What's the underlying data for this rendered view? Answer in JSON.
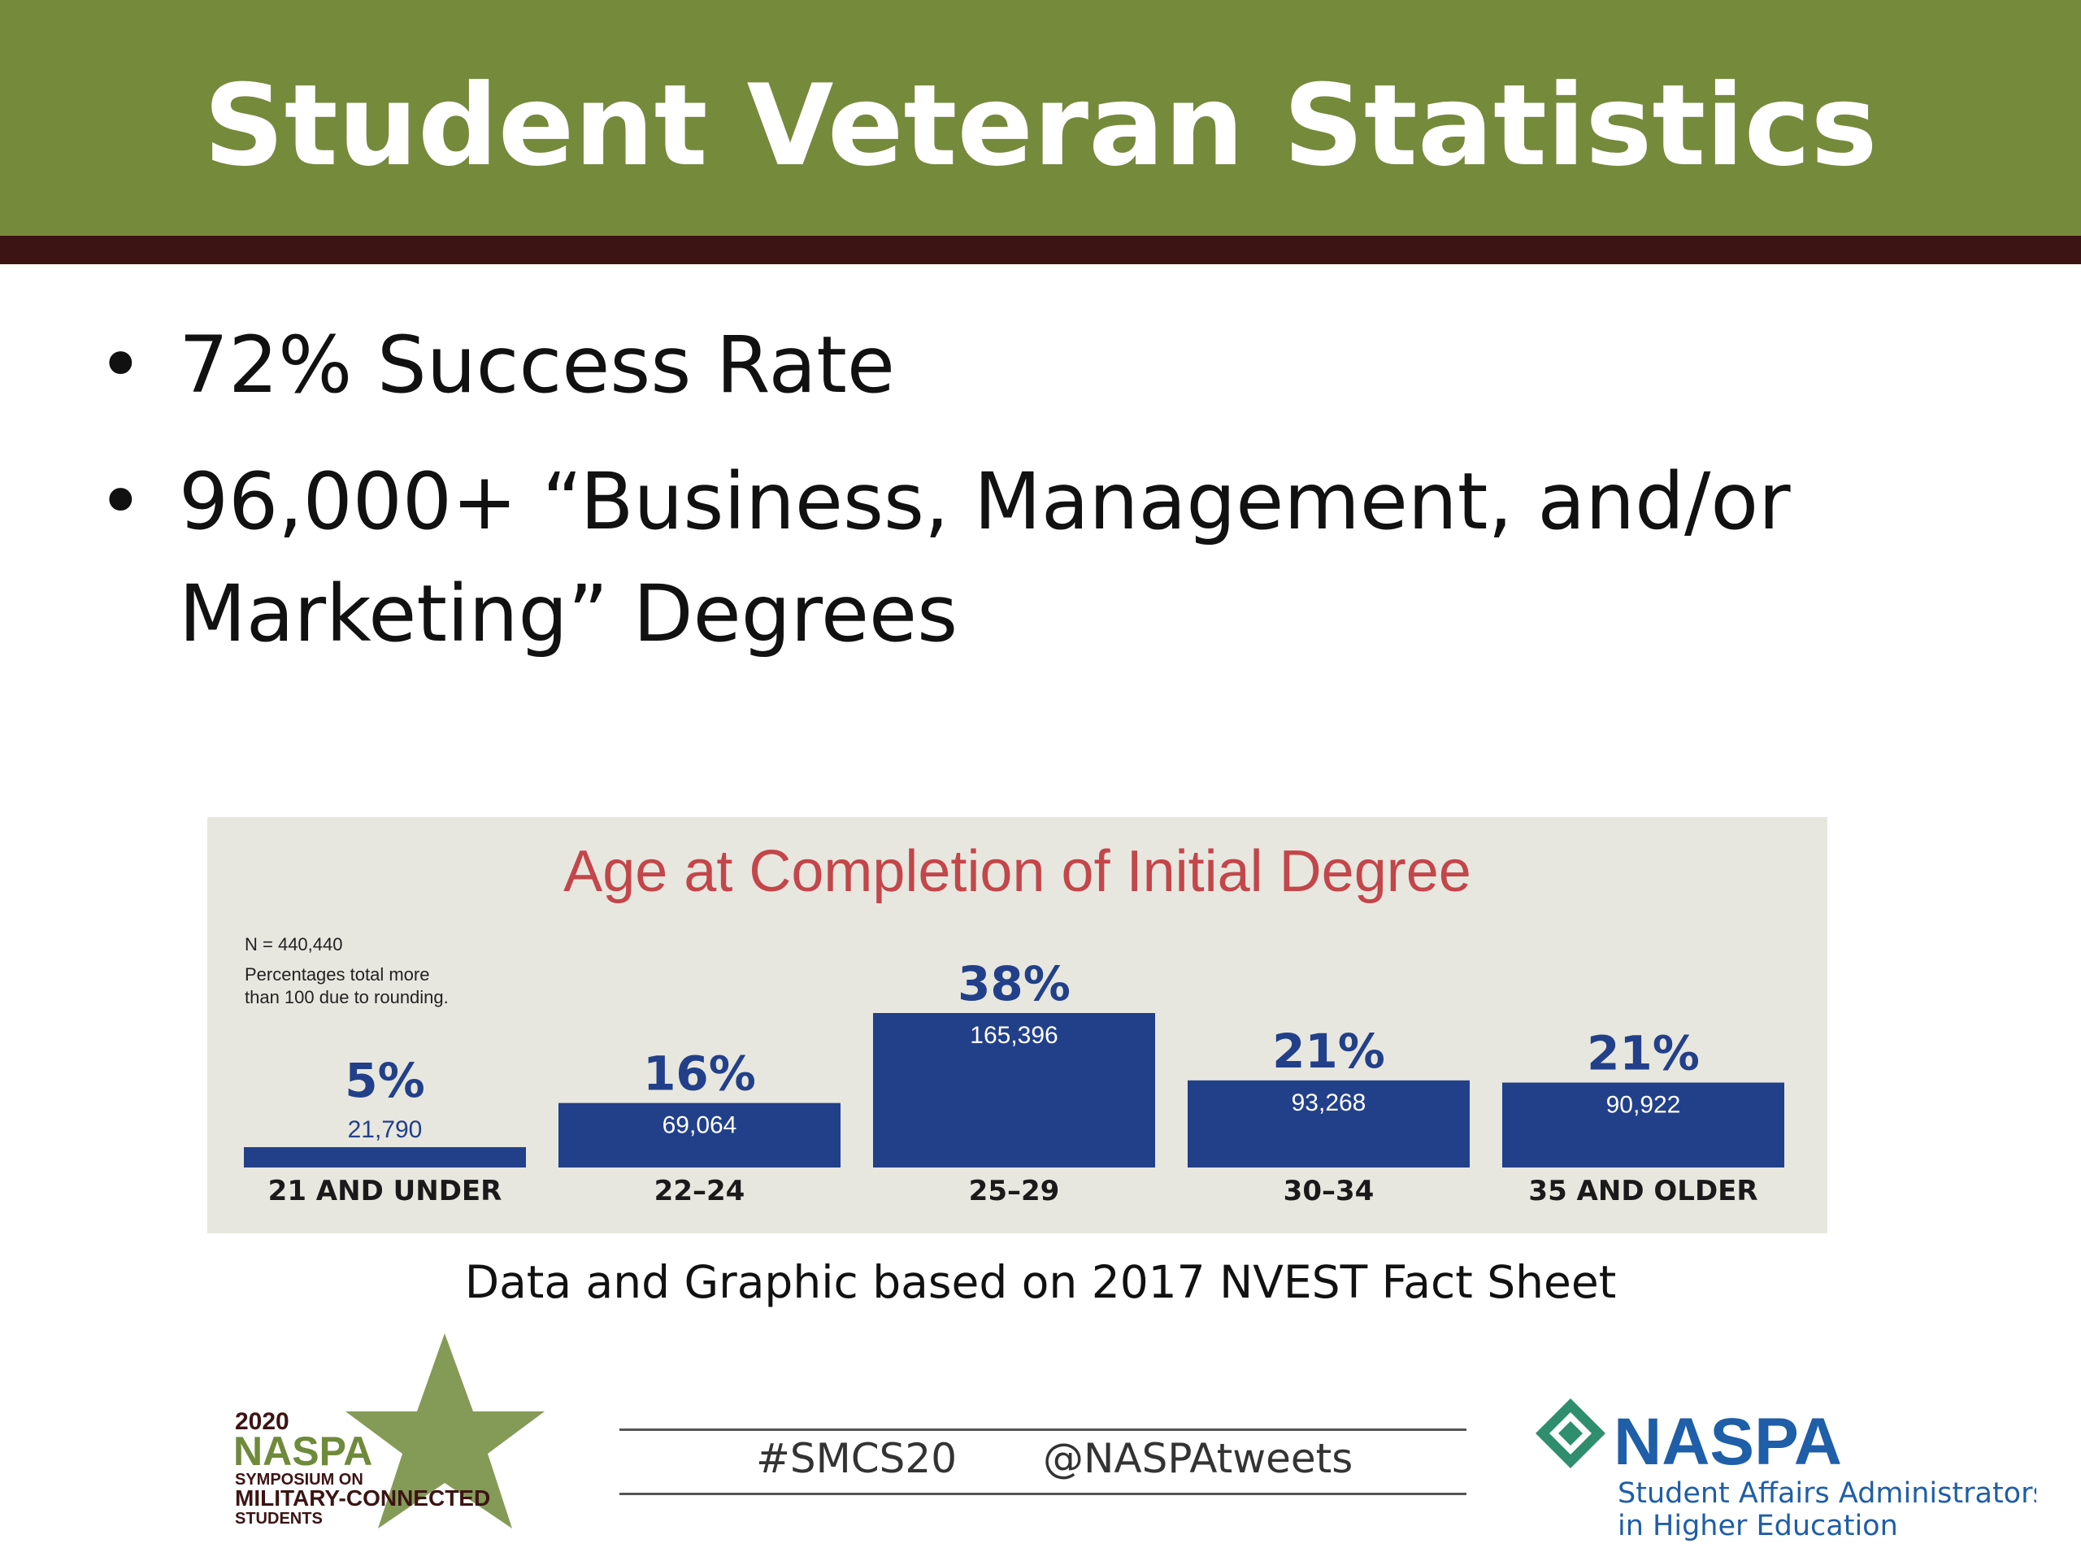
{
  "header": {
    "title": "Student Veteran Statistics"
  },
  "bullets": [
    {
      "text": "72% Success Rate"
    },
    {
      "text": "96,000+ “Business, Management, and/or Marketing” Degrees"
    }
  ],
  "chart_data": {
    "type": "bar",
    "title": "Age at Completion of Initial Degree",
    "notes": [
      "N = 440,440",
      "Percentages total more",
      "than 100 due to rounding."
    ],
    "categories": [
      "21 AND UNDER",
      "22–24",
      "25–29",
      "30–34",
      "35 AND OLDER"
    ],
    "percent_labels": [
      "5%",
      "16%",
      "38%",
      "21%",
      "21%"
    ],
    "count_labels": [
      "21,790",
      "69,064",
      "165,396",
      "93,268",
      "90,922"
    ],
    "values": [
      21790,
      69064,
      165396,
      93268,
      90922
    ],
    "bar_color": "#22408a",
    "title_color": "#c3464a",
    "grid": false,
    "legend": "none"
  },
  "caption": "Data and Graphic based on 2017 NVEST Fact Sheet",
  "footer": {
    "hashtag": "#SMCS20",
    "handle": "@NASPAtweets",
    "left_logo": {
      "year": "2020",
      "name": "NASPA",
      "line1": "SYMPOSIUM ON",
      "line2": "MILITARY-CONNECTED",
      "line3": "STUDENTS"
    },
    "right_logo": {
      "name": "NASPA",
      "tagline1": "Student Affairs Administrators",
      "tagline2": "in Higher Education"
    }
  },
  "colors": {
    "header_green": "#768a3c",
    "header_stripe": "#3d1414",
    "star_green": "#6f8a3a",
    "naspa_blue": "#1f5ea8",
    "naspa_teal": "#2f8e6d"
  }
}
